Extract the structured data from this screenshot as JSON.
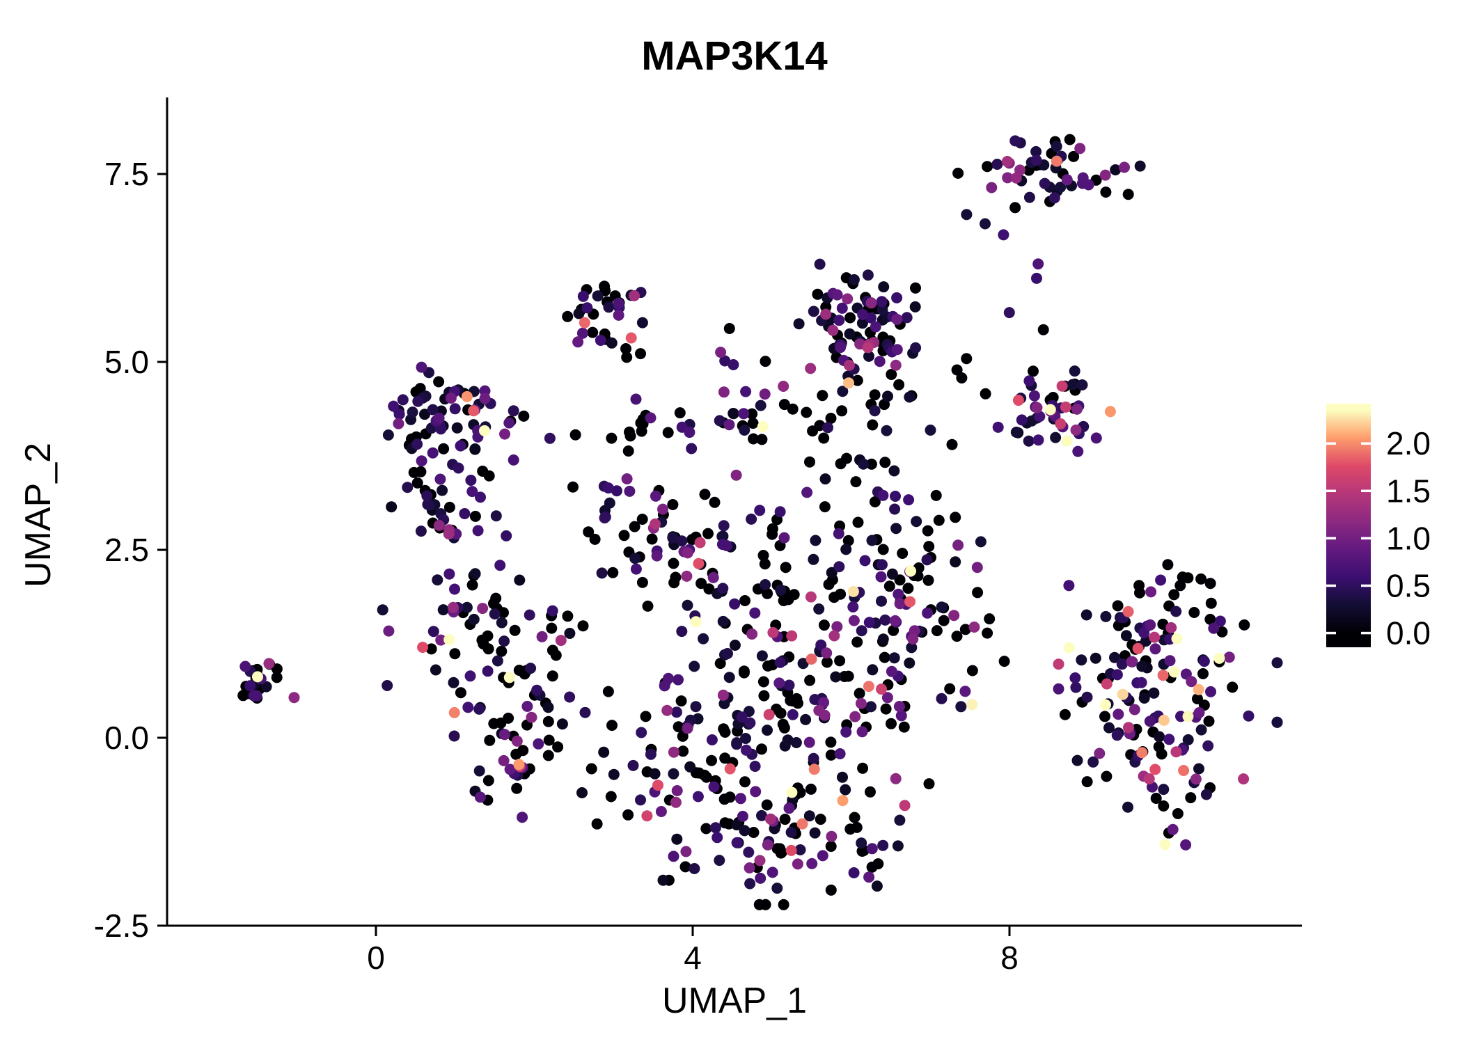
{
  "title": "MAP3K14",
  "axis": {
    "x": {
      "label": "UMAP_1",
      "tick_labels": [
        "0",
        "4",
        "8"
      ],
      "tick_values": [
        0,
        4,
        8
      ]
    },
    "y": {
      "label": "UMAP_2",
      "tick_labels": [
        "-2.5",
        "0.0",
        "2.5",
        "5.0",
        "7.5"
      ],
      "tick_values": [
        -2.5,
        0.0,
        2.5,
        5.0,
        7.5
      ]
    }
  },
  "legend": {
    "tick_labels": [
      "2.0",
      "1.5",
      "1.0",
      "0.5",
      "0.0"
    ],
    "tick_values": [
      2.0,
      1.5,
      1.0,
      0.5,
      0.0
    ]
  },
  "colors": {
    "background": "#ffffff",
    "axis": "#000000",
    "legend_tick": "#ffffff",
    "colormap": [
      {
        "t": 0.0,
        "color": "#000004"
      },
      {
        "t": 0.13,
        "color": "#140e36"
      },
      {
        "t": 0.25,
        "color": "#3b0f70"
      },
      {
        "t": 0.38,
        "color": "#641a80"
      },
      {
        "t": 0.5,
        "color": "#8c2981"
      },
      {
        "t": 0.63,
        "color": "#b73779"
      },
      {
        "t": 0.75,
        "color": "#de4968"
      },
      {
        "t": 0.88,
        "color": "#fe9f6d"
      },
      {
        "t": 1.0,
        "color": "#fcfdbf"
      }
    ]
  },
  "chart_data": {
    "type": "scatter",
    "title": "MAP3K14",
    "xlabel": "UMAP_1",
    "ylabel": "UMAP_2",
    "xlim": [
      -2.6,
      11.7
    ],
    "ylim": [
      -2.5,
      8.5
    ],
    "grid": false,
    "legend_position": "right",
    "color_scale": {
      "name": "magma",
      "domain": [
        0,
        2.35
      ]
    },
    "point_radius": 8,
    "seed": 42,
    "clusters": [
      {
        "name": "far-left-small",
        "n": 28,
        "cx": -1.45,
        "cy": 0.72,
        "sx": 0.2,
        "sy": 0.13,
        "zero_frac": 0.4,
        "scale": 0.45
      },
      {
        "name": "left-upper",
        "n": 65,
        "cx": 0.9,
        "cy": 4.25,
        "sx": 0.42,
        "sy": 0.32,
        "zero_frac": 0.35,
        "scale": 0.55
      },
      {
        "name": "left-mid-upper",
        "n": 40,
        "cx": 1.0,
        "cy": 3.1,
        "sx": 0.35,
        "sy": 0.38,
        "zero_frac": 0.4,
        "scale": 0.5
      },
      {
        "name": "left-mid",
        "n": 60,
        "cx": 1.35,
        "cy": 1.45,
        "sx": 0.55,
        "sy": 0.42,
        "zero_frac": 0.45,
        "scale": 0.5
      },
      {
        "name": "left-lower",
        "n": 50,
        "cx": 1.7,
        "cy": -0.1,
        "sx": 0.45,
        "sy": 0.42,
        "zero_frac": 0.4,
        "scale": 0.55
      },
      {
        "name": "top-mid-small",
        "n": 32,
        "cx": 2.75,
        "cy": 5.7,
        "sx": 0.28,
        "sy": 0.3,
        "zero_frac": 0.3,
        "scale": 0.6
      },
      {
        "name": "mid-band",
        "n": 45,
        "cx": 4.0,
        "cy": 4.25,
        "sx": 1.0,
        "sy": 0.18,
        "zero_frac": 0.5,
        "scale": 0.5
      },
      {
        "name": "mid-scatter-top",
        "n": 8,
        "cx": 4.3,
        "cy": 5.0,
        "sx": 0.8,
        "sy": 0.2,
        "zero_frac": 0.5,
        "scale": 0.9
      },
      {
        "name": "center-top-dense",
        "n": 90,
        "cx": 6.15,
        "cy": 5.4,
        "sx": 0.4,
        "sy": 0.42,
        "zero_frac": 0.3,
        "scale": 0.5
      },
      {
        "name": "top-right",
        "n": 50,
        "cx": 8.5,
        "cy": 7.5,
        "sx": 0.5,
        "sy": 0.22,
        "zero_frac": 0.3,
        "scale": 0.7
      },
      {
        "name": "top-right-sparse",
        "n": 5,
        "cx": 8.0,
        "cy": 6.4,
        "sx": 0.5,
        "sy": 0.4,
        "zero_frac": 0.2,
        "scale": 0.6
      },
      {
        "name": "right-mid",
        "n": 45,
        "cx": 8.65,
        "cy": 4.35,
        "sx": 0.35,
        "sy": 0.32,
        "zero_frac": 0.35,
        "scale": 0.6
      },
      {
        "name": "right-mid-sparse",
        "n": 12,
        "cx": 7.3,
        "cy": 4.7,
        "sx": 0.6,
        "sy": 0.45,
        "zero_frac": 0.4,
        "scale": 0.6
      },
      {
        "name": "center-upper-left",
        "n": 40,
        "cx": 3.4,
        "cy": 2.8,
        "sx": 0.5,
        "sy": 0.45,
        "zero_frac": 0.5,
        "scale": 0.5
      },
      {
        "name": "center-upper",
        "n": 65,
        "cx": 4.6,
        "cy": 2.1,
        "sx": 0.7,
        "sy": 0.5,
        "zero_frac": 0.55,
        "scale": 0.45
      },
      {
        "name": "center-main",
        "n": 120,
        "cx": 5.6,
        "cy": 0.9,
        "sx": 0.85,
        "sy": 0.75,
        "zero_frac": 0.45,
        "scale": 0.55
      },
      {
        "name": "center-lower-left",
        "n": 110,
        "cx": 4.4,
        "cy": -0.4,
        "sx": 0.85,
        "sy": 0.65,
        "zero_frac": 0.45,
        "scale": 0.5
      },
      {
        "name": "center-bottom",
        "n": 65,
        "cx": 5.2,
        "cy": -1.3,
        "sx": 0.75,
        "sy": 0.4,
        "zero_frac": 0.4,
        "scale": 0.55
      },
      {
        "name": "center-right-edge",
        "n": 55,
        "cx": 6.9,
        "cy": 1.9,
        "sx": 0.45,
        "sy": 0.6,
        "zero_frac": 0.45,
        "scale": 0.55
      },
      {
        "name": "center-bridge",
        "n": 30,
        "cx": 6.3,
        "cy": 3.4,
        "sx": 0.5,
        "sy": 0.5,
        "zero_frac": 0.55,
        "scale": 0.4
      },
      {
        "name": "right-large",
        "n": 135,
        "cx": 10.0,
        "cy": 0.3,
        "sx": 0.6,
        "sy": 0.75,
        "zero_frac": 0.3,
        "scale": 0.7
      },
      {
        "name": "right-large-top",
        "n": 30,
        "cx": 9.9,
        "cy": 1.7,
        "sx": 0.5,
        "sy": 0.3,
        "zero_frac": 0.4,
        "scale": 0.55
      }
    ]
  }
}
